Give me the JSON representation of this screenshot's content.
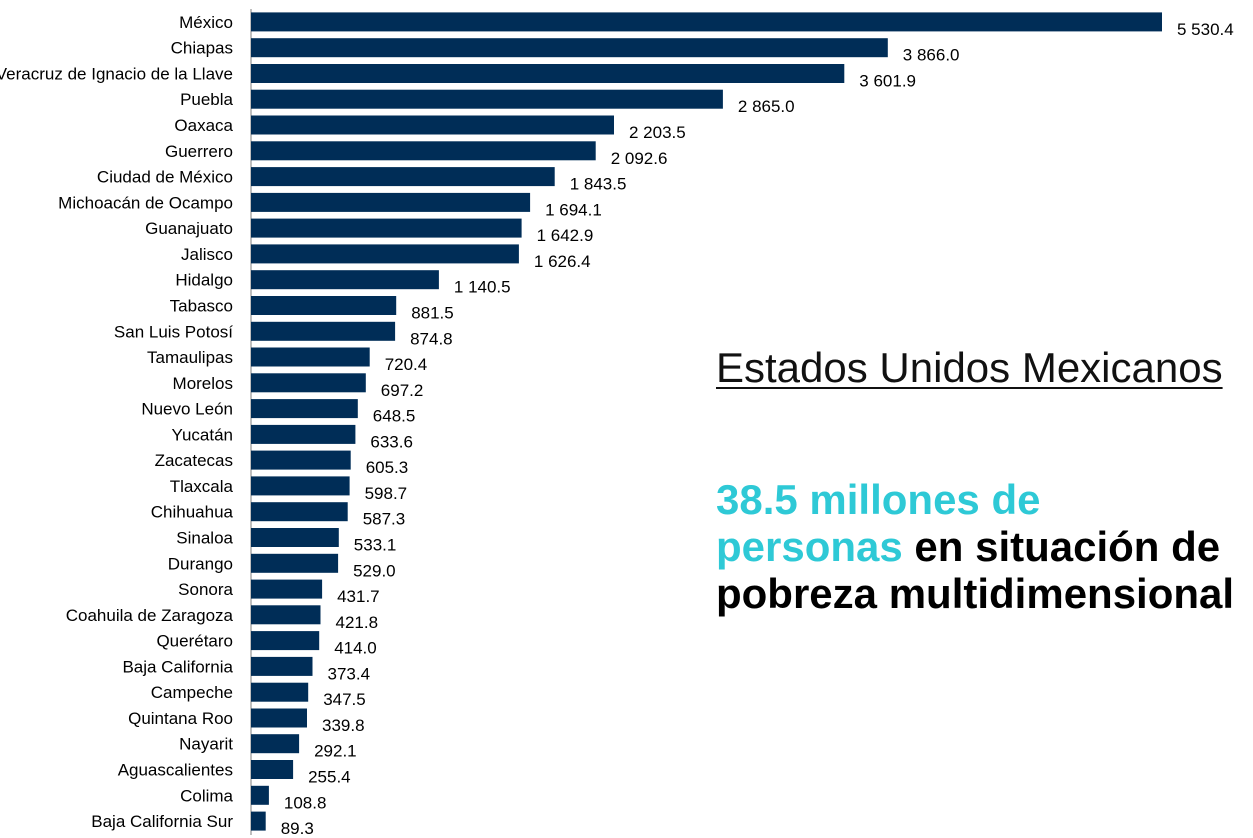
{
  "chart_data": {
    "type": "bar",
    "orientation": "horizontal",
    "categories": [
      "México",
      "Chiapas",
      "Veracruz de Ignacio de la Llave",
      "Puebla",
      "Oaxaca",
      "Guerrero",
      "Ciudad de México",
      "Michoacán de Ocampo",
      "Guanajuato",
      "Jalisco",
      "Hidalgo",
      "Tabasco",
      "San Luis Potosí",
      "Tamaulipas",
      "Morelos",
      "Nuevo León",
      "Yucatán",
      "Zacatecas",
      "Tlaxcala",
      "Chihuahua",
      "Sinaloa",
      "Durango",
      "Sonora",
      "Coahuila de Zaragoza",
      "Querétaro",
      "Baja California",
      "Campeche",
      "Quintana Roo",
      "Nayarit",
      "Aguascalientes",
      "Colima",
      "Baja California Sur"
    ],
    "values": [
      5530.4,
      3866.0,
      3601.9,
      2865.0,
      2203.5,
      2092.6,
      1843.5,
      1694.1,
      1642.9,
      1626.4,
      1140.5,
      881.5,
      874.8,
      720.4,
      697.2,
      648.5,
      633.6,
      605.3,
      598.7,
      587.3,
      533.1,
      529.0,
      431.7,
      421.8,
      414.0,
      373.4,
      347.5,
      339.8,
      292.1,
      255.4,
      108.8,
      89.3
    ],
    "value_labels": [
      "5 530.4",
      "3 866.0",
      "3 601.9",
      "2 865.0",
      "2 203.5",
      "2 092.6",
      "1 843.5",
      "1 694.1",
      "1 642.9",
      "1 626.4",
      "1 140.5",
      "881.5",
      "874.8",
      "720.4",
      "697.2",
      "648.5",
      "633.6",
      "605.3",
      "598.7",
      "587.3",
      "533.1",
      "529.0",
      "431.7",
      "421.8",
      "414.0",
      "373.4",
      "347.5",
      "339.8",
      "292.1",
      "255.4",
      "108.8",
      "89.3"
    ],
    "title": "",
    "xlabel": "",
    "ylabel": "",
    "xlim": [
      0,
      5530.4
    ],
    "grid": false,
    "bar_color": "#002d57"
  },
  "callout": {
    "heading": "Estados Unidos Mexicanos",
    "highlight": "38.5 millones de personas",
    "rest": " en situación de pobreza multidimensional",
    "highlight_color": "#2ec9d6"
  }
}
